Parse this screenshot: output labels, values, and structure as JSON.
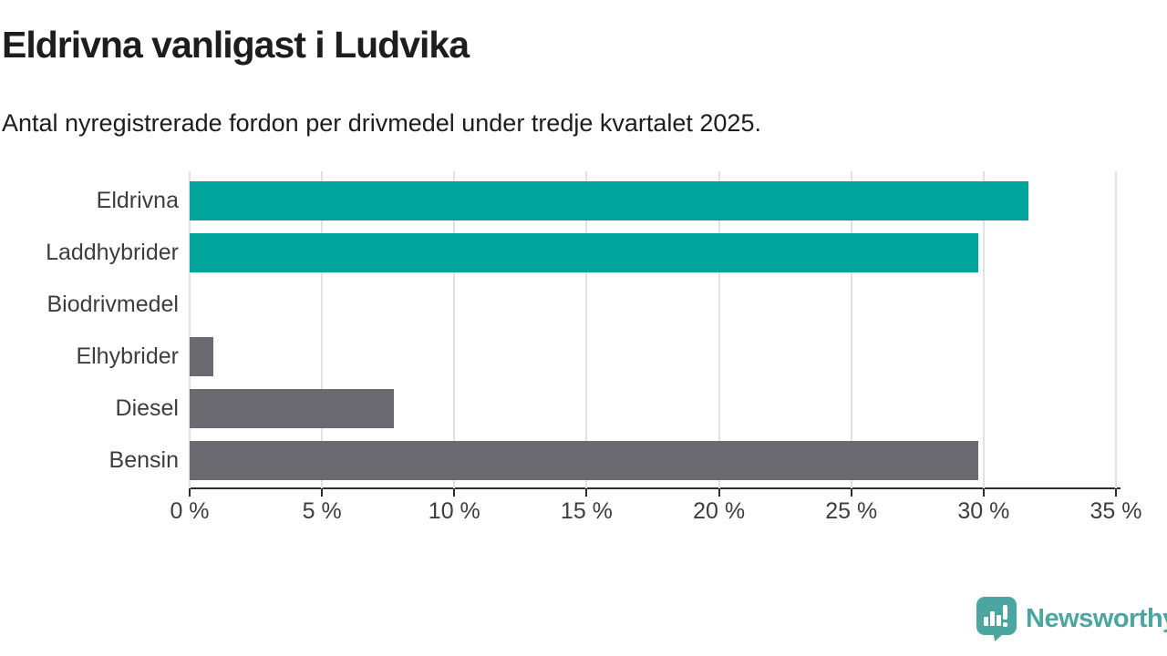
{
  "header": {
    "title": "Eldrivna vanligast i Ludvika",
    "subtitle": "Antal nyregistrerade fordon per drivmedel under tredje kvartalet 2025."
  },
  "chart_data": {
    "type": "bar",
    "orientation": "horizontal",
    "title": "Eldrivna vanligast i Ludvika",
    "subtitle": "Antal nyregistrerade fordon per drivmedel under tredje kvartalet 2025.",
    "categories": [
      "Eldrivna",
      "Laddhybrider",
      "Biodrivmedel",
      "Elhybrider",
      "Diesel",
      "Bensin"
    ],
    "values": [
      31.7,
      29.8,
      0,
      0.9,
      7.7,
      29.8
    ],
    "unit": "%",
    "bar_colors": [
      "#00a49b",
      "#00a49b",
      "#00a49b",
      "#6a6a70",
      "#6a6a70",
      "#6a6a70"
    ],
    "xlim": [
      0,
      35
    ],
    "x_tick_values": [
      0,
      5,
      10,
      15,
      20,
      25,
      30,
      35
    ],
    "x_tick_labels": [
      "0 %",
      "5 %",
      "10 %",
      "15 %",
      "20 %",
      "25 %",
      "30 %",
      "35 %"
    ],
    "grid": true,
    "legend": false
  },
  "colors": {
    "teal": "#00a49b",
    "gray": "#6a6a70",
    "gridline": "#e2e2e2",
    "axis": "#2d2d2d",
    "text": "#1d1d1d",
    "logo_teal": "#4ba5a0"
  },
  "branding": {
    "logo_text": "Newsworthy",
    "logo_icon": "speech-bubble-bar-chart-icon"
  }
}
